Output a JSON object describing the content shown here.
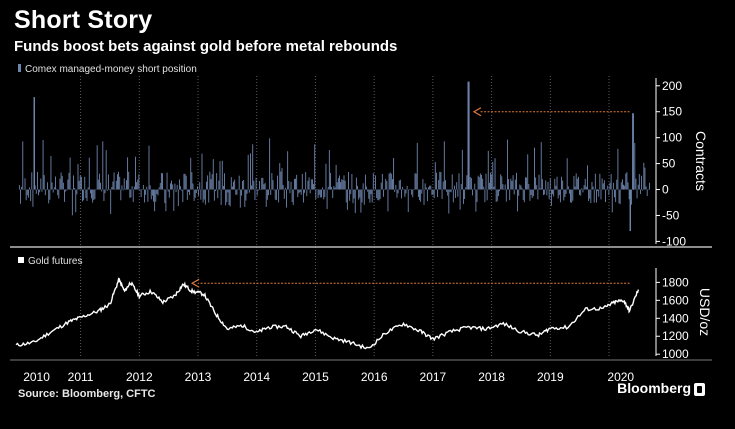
{
  "header": {
    "title": "Short Story",
    "subtitle": "Funds boost bets against gold before metal rebounds"
  },
  "footer": {
    "source": "Source: Bloomberg, CFTC",
    "brand": "Bloomberg"
  },
  "colors": {
    "background": "#000000",
    "bars": "#6d85ad",
    "gold_line": "#ffffff",
    "arrow": "#e07a3a",
    "axis": "#ffffff",
    "grid": "#5a5a5a"
  },
  "chart_data": [
    {
      "type": "bar",
      "legend": "Comex managed-money short position",
      "ylabel": "Contracts",
      "yticks": [
        200,
        150,
        100,
        50,
        0,
        -50,
        -100
      ],
      "ylim": [
        -105,
        215
      ],
      "xlim": [
        2009.9,
        2020.8
      ],
      "grid": "vertical dotted at year boundaries",
      "highlights": [
        {
          "x": 2017.6,
          "value": 208
        },
        {
          "x": 2020.4,
          "value": 147
        },
        {
          "x": 2020.35,
          "value": -80
        },
        {
          "x": 2010.2,
          "value": 178
        }
      ],
      "annotation": {
        "type": "arrow",
        "from_x": 2020.35,
        "to_x": 2017.7,
        "value": 150
      }
    },
    {
      "type": "line",
      "legend": "Gold futures",
      "ylabel": "USD/oz",
      "yticks": [
        1800,
        1600,
        1400,
        1200,
        1000
      ],
      "ylim": [
        980,
        1960
      ],
      "xlim": [
        2009.9,
        2020.8
      ],
      "x": [
        2009.9,
        2010.2,
        2010.5,
        2010.8,
        2011.0,
        2011.3,
        2011.5,
        2011.65,
        2011.75,
        2011.85,
        2012.0,
        2012.2,
        2012.4,
        2012.6,
        2012.75,
        2012.9,
        2013.1,
        2013.3,
        2013.5,
        2013.75,
        2014.0,
        2014.2,
        2014.5,
        2014.75,
        2015.0,
        2015.3,
        2015.6,
        2015.9,
        2016.2,
        2016.5,
        2016.8,
        2017.0,
        2017.3,
        2017.6,
        2017.9,
        2018.2,
        2018.5,
        2018.8,
        2019.0,
        2019.3,
        2019.6,
        2019.9,
        2020.1,
        2020.25,
        2020.35,
        2020.5
      ],
      "values": [
        1100,
        1130,
        1250,
        1360,
        1410,
        1480,
        1560,
        1830,
        1700,
        1800,
        1650,
        1700,
        1580,
        1650,
        1780,
        1700,
        1670,
        1450,
        1280,
        1320,
        1240,
        1300,
        1310,
        1200,
        1280,
        1180,
        1130,
        1060,
        1240,
        1340,
        1250,
        1170,
        1250,
        1300,
        1280,
        1340,
        1250,
        1210,
        1290,
        1300,
        1500,
        1510,
        1580,
        1600,
        1480,
        1720
      ],
      "annotation": {
        "type": "arrow",
        "from_x": 2020.35,
        "to_x": 2012.9,
        "value": 1790
      }
    }
  ],
  "x_axis": {
    "labels": [
      "2010",
      "2011",
      "2012",
      "2013",
      "2014",
      "2015",
      "2016",
      "2017",
      "2018",
      "2019",
      "2020"
    ],
    "positions": [
      2010.25,
      2011.0,
      2012.0,
      2013.0,
      2014.0,
      2015.0,
      2016.0,
      2017.0,
      2018.0,
      2019.0,
      2020.2
    ]
  }
}
